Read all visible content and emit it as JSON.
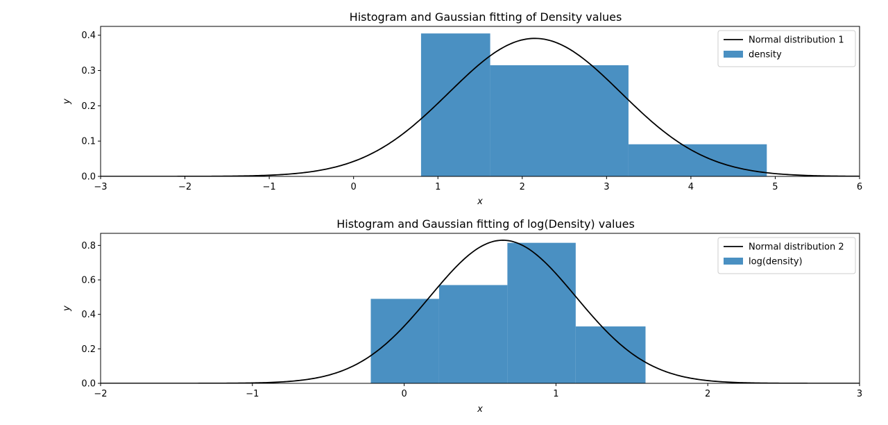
{
  "chart_data": [
    {
      "type": "bar",
      "title": "Histogram and Gaussian fitting of Density values",
      "xlabel": "x",
      "ylabel": "y",
      "xlim": [
        -3,
        6
      ],
      "ylim": [
        0,
        0.425
      ],
      "xticks": [
        "−3",
        "−2",
        "−1",
        "0",
        "1",
        "2",
        "3",
        "4",
        "5",
        "6"
      ],
      "xtick_values": [
        -3,
        -2,
        -1,
        0,
        1,
        2,
        3,
        4,
        5,
        6
      ],
      "yticks": [
        "0.0",
        "0.1",
        "0.2",
        "0.3",
        "0.4"
      ],
      "ytick_values": [
        0,
        0.1,
        0.2,
        0.3,
        0.4
      ],
      "histogram": {
        "name": "density",
        "bin_edges": [
          0.8,
          1.62,
          3.26,
          4.9
        ],
        "values": [
          0.405,
          0.315,
          0.091
        ],
        "color": "#4a90c2"
      },
      "curve": {
        "name": "Normal distribution 1",
        "type": "line",
        "mu": 2.15,
        "sigma": 1.02,
        "peak": 0.391,
        "color": "#000000"
      },
      "legend": {
        "placement": "top-right",
        "entries": [
          "Normal distribution 1",
          "density"
        ]
      },
      "grid": false
    },
    {
      "type": "bar",
      "title": "Histogram and Gaussian fitting of log(Density) values",
      "xlabel": "x",
      "ylabel": "y",
      "xlim": [
        -2,
        3
      ],
      "ylim": [
        0,
        0.87
      ],
      "xticks": [
        "−2",
        "−1",
        "0",
        "1",
        "2",
        "3"
      ],
      "xtick_values": [
        -2,
        -1,
        0,
        1,
        2,
        3
      ],
      "yticks": [
        "0.0",
        "0.2",
        "0.4",
        "0.6",
        "0.8"
      ],
      "ytick_values": [
        0,
        0.2,
        0.4,
        0.6,
        0.8
      ],
      "histogram": {
        "name": "log(density)",
        "bin_edges": [
          -0.22,
          0.23,
          0.68,
          1.13,
          1.59
        ],
        "values": [
          0.49,
          0.57,
          0.815,
          0.33
        ],
        "color": "#4a90c2"
      },
      "curve": {
        "name": "Normal distribution 2",
        "type": "line",
        "mu": 0.65,
        "sigma": 0.48,
        "peak": 0.83,
        "color": "#000000"
      },
      "legend": {
        "placement": "top-right",
        "entries": [
          "Normal distribution 2",
          "log(density)"
        ]
      },
      "grid": false
    }
  ]
}
